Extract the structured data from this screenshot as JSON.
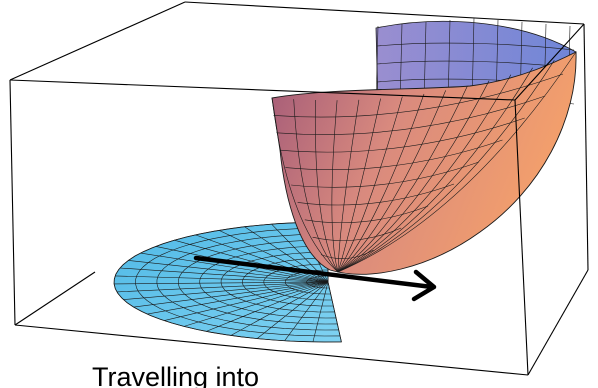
{
  "caption": "Travelling into",
  "colors": {
    "disk_fill": "#5fc3ec",
    "paraboloid_deep": "#a35a78",
    "paraboloid_mid": "#d98a7e",
    "paraboloid_light": "#f4a06b",
    "paraboloid_back": "#7d8fd6",
    "grid_line": "#1a1a1a",
    "arrow": "#000000",
    "box_line": "#000000"
  },
  "icons": {
    "arrow": "direction-arrow-icon"
  }
}
